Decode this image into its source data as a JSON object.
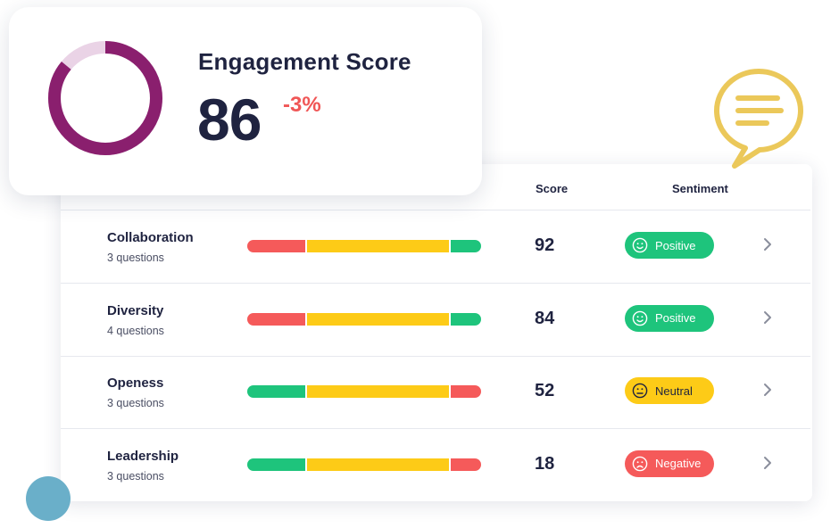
{
  "score_card": {
    "title": "Engagement Score",
    "score": 86,
    "score_label": "86",
    "change": "-3%",
    "colors": {
      "ring": "#8a1f6e",
      "ring_track": "#ead3e6",
      "change": "#f05656"
    }
  },
  "table": {
    "headers": {
      "score": "Score",
      "sentiment": "Sentiment"
    },
    "rows": [
      {
        "name": "Collaboration",
        "subtitle": "3 questions",
        "score": "92",
        "sentiment": "Positive",
        "sentiment_icon": "smile-icon",
        "bar": [
          {
            "color": "#f55a5a",
            "fraction": 0.25
          },
          {
            "color": "#fdcb17",
            "fraction": 0.62
          },
          {
            "color": "#1ec47c",
            "fraction": 0.13
          }
        ]
      },
      {
        "name": "Diversity",
        "subtitle": "4 questions",
        "score": "84",
        "sentiment": "Positive",
        "sentiment_icon": "smile-icon",
        "bar": [
          {
            "color": "#f55a5a",
            "fraction": 0.25
          },
          {
            "color": "#fdcb17",
            "fraction": 0.62
          },
          {
            "color": "#1ec47c",
            "fraction": 0.13
          }
        ]
      },
      {
        "name": "Openess",
        "subtitle": "3 questions",
        "score": "52",
        "sentiment": "Neutral",
        "sentiment_icon": "neutral-face-icon",
        "bar": [
          {
            "color": "#1ec47c",
            "fraction": 0.25
          },
          {
            "color": "#fdcb17",
            "fraction": 0.62
          },
          {
            "color": "#f55a5a",
            "fraction": 0.13
          }
        ]
      },
      {
        "name": "Leadership",
        "subtitle": "3 questions",
        "score": "18",
        "sentiment": "Negative",
        "sentiment_icon": "sad-face-icon",
        "bar": [
          {
            "color": "#1ec47c",
            "fraction": 0.25
          },
          {
            "color": "#fdcb17",
            "fraction": 0.62
          },
          {
            "color": "#f55a5a",
            "fraction": 0.13
          }
        ]
      }
    ]
  },
  "sentiment_styles": {
    "Positive": {
      "bg": "#1ec47c",
      "text": "#ffffff"
    },
    "Neutral": {
      "bg": "#fdcb17",
      "text": "#1f2340"
    },
    "Negative": {
      "bg": "#f55a5a",
      "text": "#ffffff"
    }
  },
  "decor": {
    "bubble_color": "#ebc85a",
    "dot_color": "#6aafc9"
  }
}
